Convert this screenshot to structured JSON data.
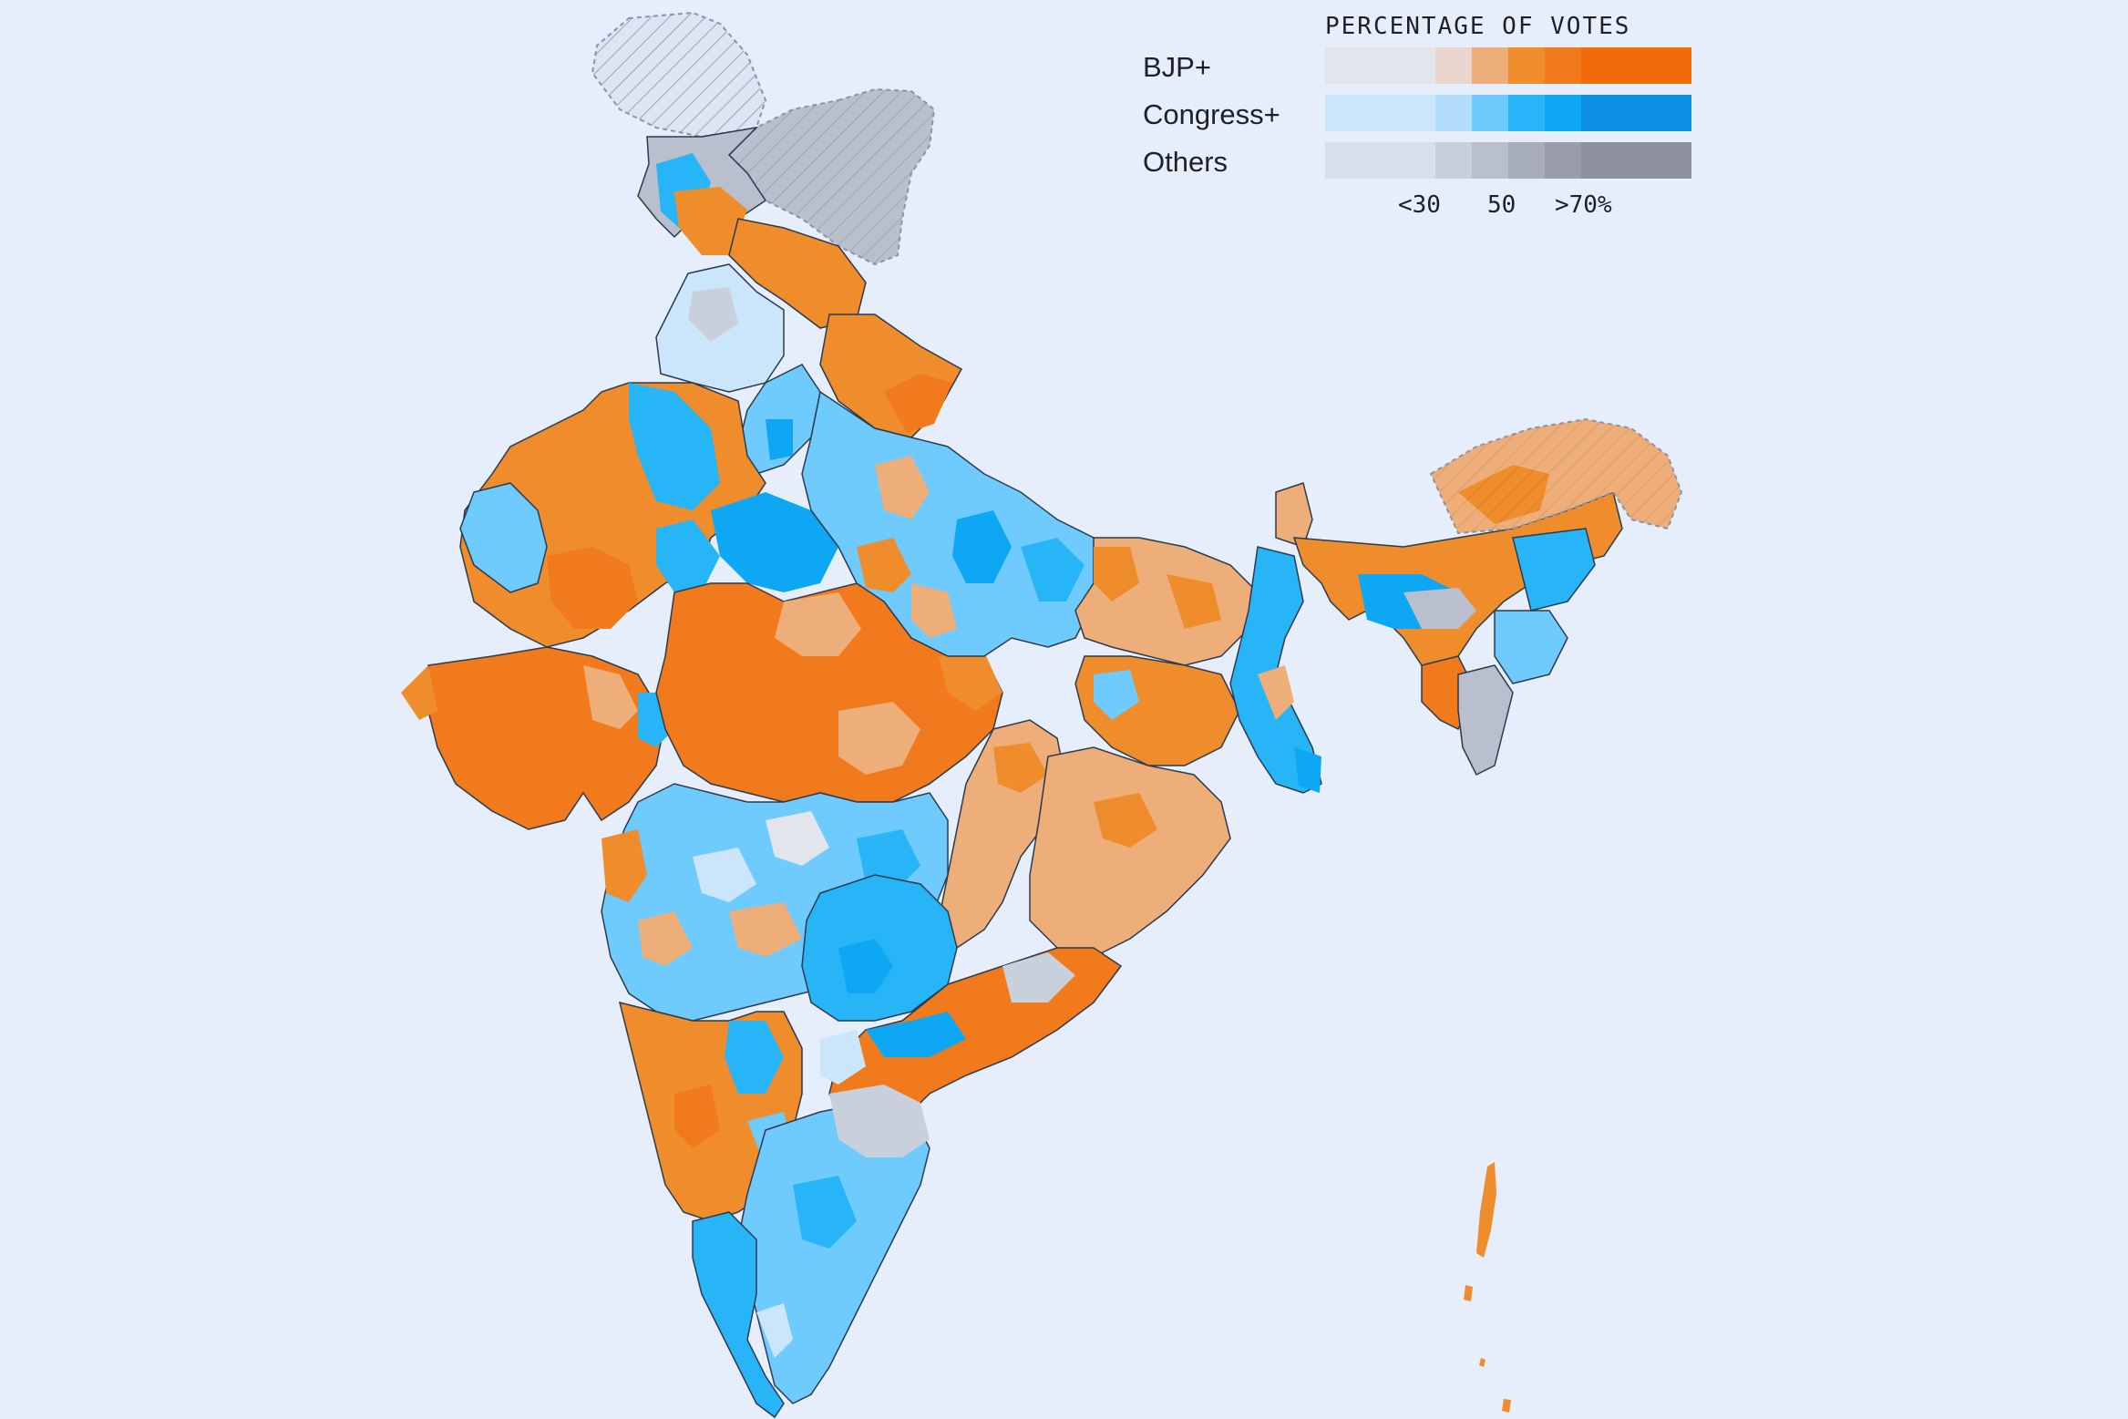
{
  "legend": {
    "title": "PERCENTAGE OF VOTES",
    "rows": [
      {
        "label": "BJP+",
        "colors": [
          "#e3e5ec",
          "#e3e5ec",
          "#e3e5ec",
          "#ebd6cf",
          "#eeae7a",
          "#ef8c2c",
          "#f07a1c",
          "#f26a0a",
          "#f26a0a",
          "#f26a0a"
        ]
      },
      {
        "label": "Congress+",
        "colors": [
          "#cbe5fb",
          "#cbe5fb",
          "#cbe5fb",
          "#b4dcfb",
          "#6fcbfd",
          "#27b5f8",
          "#0ea7f4",
          "#0b8fe2",
          "#0b8fe2",
          "#0b8fe2"
        ]
      },
      {
        "label": "Others",
        "colors": [
          "#d8dfec",
          "#d8dfec",
          "#d8dfec",
          "#c8d0dc",
          "#b9bfcc",
          "#a8adbc",
          "#989cab",
          "#8d909e",
          "#8d909e",
          "#8d909e"
        ]
      }
    ],
    "ticks": [
      "<30",
      "50",
      ">70%"
    ]
  },
  "map": {
    "colors": {
      "background": "#e5eefa",
      "border": "#2b3a4f",
      "disputed_fill": "#dce5f2",
      "disputed_stroke": "#8a94a6",
      "bjp_light": "#eeae7a",
      "bjp_mid": "#ef8c2c",
      "bjp_dark": "#f07a1c",
      "cong_pale": "#cbe5fb",
      "cong_light": "#6fcbfd",
      "cong_mid": "#27b5f8",
      "cong_dark": "#0ea7f4",
      "others_light": "#c8d0dc",
      "others_mid": "#b9bfcc",
      "neutral": "#e3e5ec"
    }
  }
}
